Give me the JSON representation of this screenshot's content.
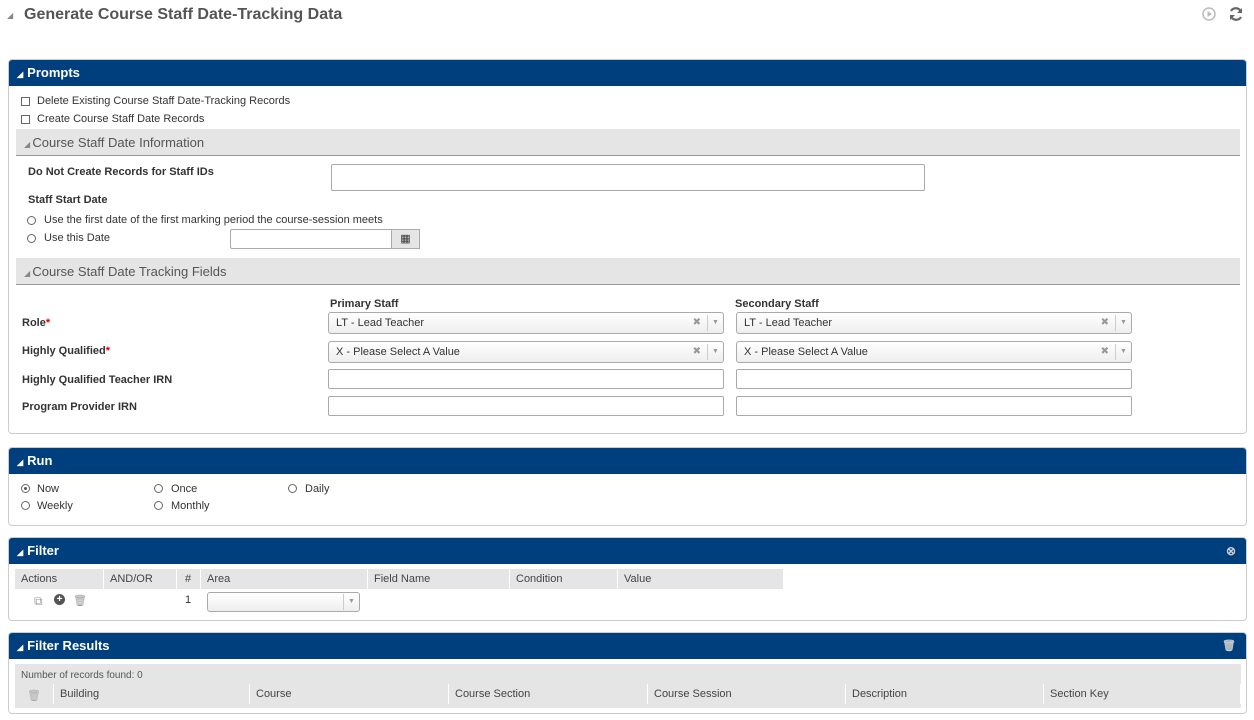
{
  "page": {
    "title": "Generate Course Staff Date-Tracking Data",
    "icons": [
      "play-circle-icon",
      "refresh-icon"
    ]
  },
  "prompts": {
    "header": "Prompts",
    "delete_label": "Delete Existing Course Staff Date-Tracking Records",
    "create_label": "Create Course Staff Date Records",
    "info_section": "Course Staff Date Information",
    "no_create_label": "Do Not Create Records for Staff IDs",
    "no_create_value": "",
    "start_date_label": "Staff Start Date",
    "opt_first": "Use the first date of the first marking period the course-session meets",
    "opt_this": "Use this Date",
    "date_value": "",
    "fields_section": "Course Staff Date Tracking Fields",
    "primary": "Primary Staff",
    "secondary": "Secondary Staff",
    "role_label": "Role",
    "hq_label": "Highly Qualified",
    "required": "*",
    "hqt_label": "Highly Qualified Teacher IRN",
    "ppi_label": "Program Provider IRN",
    "role_primary": "LT - Lead Teacher",
    "role_secondary": "LT - Lead Teacher",
    "hq_primary": "X - Please Select A Value",
    "hq_secondary": "X - Please Select A Value"
  },
  "run": {
    "header": "Run",
    "options": [
      "Now",
      "Once",
      "Daily",
      "Weekly",
      "Monthly"
    ],
    "selected": "Now"
  },
  "filter": {
    "header": "Filter",
    "columns": [
      "Actions",
      "AND/OR",
      "#",
      "Area",
      "Field Name",
      "Condition",
      "Value"
    ],
    "row_number": "1",
    "area_value": ""
  },
  "results": {
    "header": "Filter Results",
    "count_text": "Number of records found: 0",
    "columns": [
      "Building",
      "Course",
      "Course Section",
      "Course Session",
      "Description",
      "Section Key"
    ]
  },
  "colors": {
    "header_bg": "#003f7d",
    "section_bg": "#e5e5e5"
  }
}
